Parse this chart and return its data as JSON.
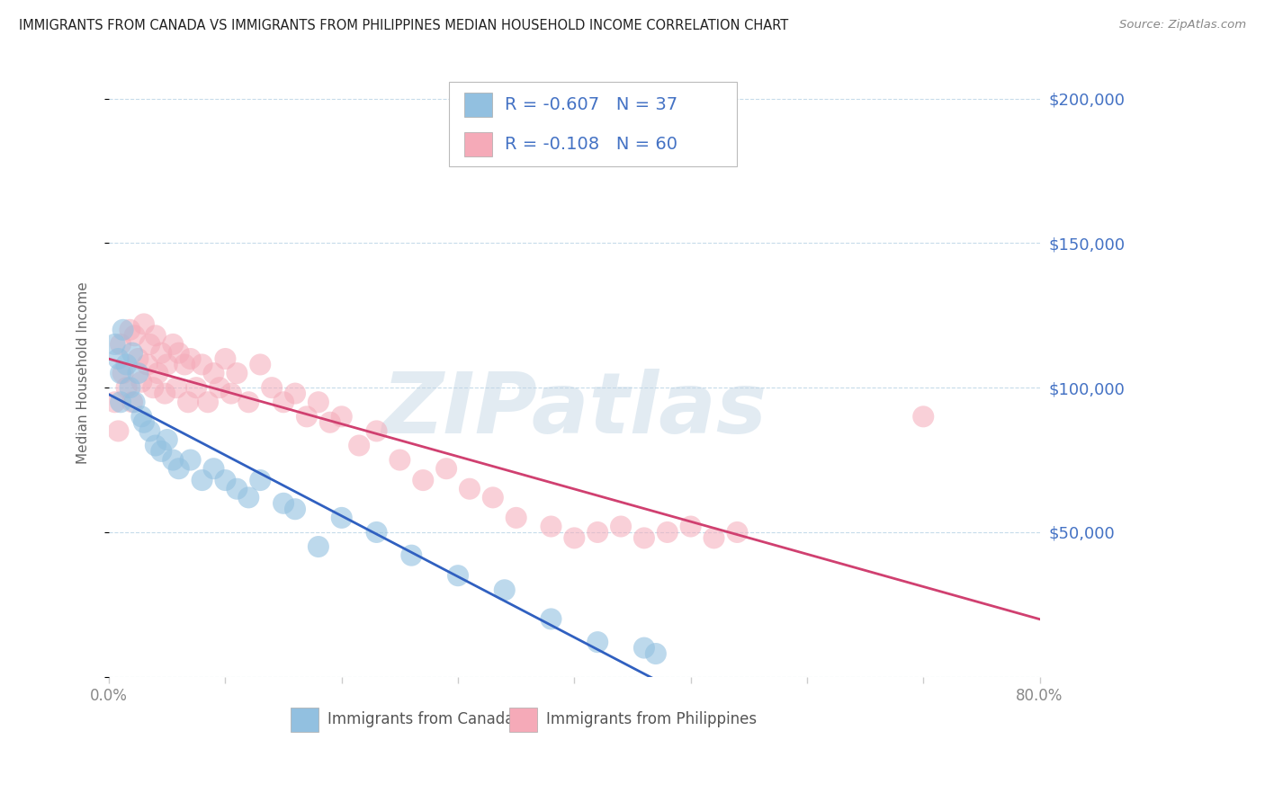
{
  "title": "IMMIGRANTS FROM CANADA VS IMMIGRANTS FROM PHILIPPINES MEDIAN HOUSEHOLD INCOME CORRELATION CHART",
  "source": "Source: ZipAtlas.com",
  "ylabel": "Median Household Income",
  "xlim": [
    0.0,
    0.8
  ],
  "ylim": [
    0,
    210000
  ],
  "yticks": [
    0,
    50000,
    100000,
    150000,
    200000
  ],
  "xticks": [
    0.0,
    0.1,
    0.2,
    0.3,
    0.4,
    0.5,
    0.6,
    0.7,
    0.8
  ],
  "xtick_labels": [
    "0.0%",
    "",
    "",
    "",
    "",
    "",
    "",
    "",
    "80.0%"
  ],
  "blue_color": "#92c0e0",
  "pink_color": "#f5aab8",
  "blue_line_color": "#3060c0",
  "pink_line_color": "#d04070",
  "legend_text_color": "#4472c4",
  "right_axis_color": "#4472c4",
  "R_blue": -0.607,
  "N_blue": 37,
  "R_pink": -0.108,
  "N_pink": 60,
  "legend_label_blue": "Immigrants from Canada",
  "legend_label_pink": "Immigrants from Philippines",
  "watermark": "ZIPatlas",
  "blue_scatter_x": [
    0.005,
    0.008,
    0.01,
    0.01,
    0.012,
    0.015,
    0.018,
    0.02,
    0.022,
    0.025,
    0.028,
    0.03,
    0.035,
    0.04,
    0.045,
    0.05,
    0.055,
    0.06,
    0.07,
    0.08,
    0.09,
    0.1,
    0.11,
    0.12,
    0.13,
    0.15,
    0.16,
    0.18,
    0.2,
    0.23,
    0.26,
    0.3,
    0.34,
    0.38,
    0.42,
    0.46,
    0.47
  ],
  "blue_scatter_y": [
    115000,
    110000,
    105000,
    95000,
    120000,
    108000,
    100000,
    112000,
    95000,
    105000,
    90000,
    88000,
    85000,
    80000,
    78000,
    82000,
    75000,
    72000,
    75000,
    68000,
    72000,
    68000,
    65000,
    62000,
    68000,
    60000,
    58000,
    45000,
    55000,
    50000,
    42000,
    35000,
    30000,
    20000,
    12000,
    10000,
    8000
  ],
  "pink_scatter_x": [
    0.005,
    0.008,
    0.01,
    0.012,
    0.015,
    0.018,
    0.02,
    0.022,
    0.025,
    0.028,
    0.03,
    0.033,
    0.035,
    0.038,
    0.04,
    0.042,
    0.045,
    0.048,
    0.05,
    0.055,
    0.058,
    0.06,
    0.065,
    0.068,
    0.07,
    0.075,
    0.08,
    0.085,
    0.09,
    0.095,
    0.1,
    0.105,
    0.11,
    0.12,
    0.13,
    0.14,
    0.15,
    0.16,
    0.17,
    0.18,
    0.19,
    0.2,
    0.215,
    0.23,
    0.25,
    0.27,
    0.29,
    0.31,
    0.33,
    0.35,
    0.38,
    0.4,
    0.42,
    0.44,
    0.46,
    0.48,
    0.5,
    0.52,
    0.54,
    0.7
  ],
  "pink_scatter_y": [
    95000,
    85000,
    115000,
    105000,
    100000,
    120000,
    95000,
    118000,
    110000,
    102000,
    122000,
    108000,
    115000,
    100000,
    118000,
    105000,
    112000,
    98000,
    108000,
    115000,
    100000,
    112000,
    108000,
    95000,
    110000,
    100000,
    108000,
    95000,
    105000,
    100000,
    110000,
    98000,
    105000,
    95000,
    108000,
    100000,
    95000,
    98000,
    90000,
    95000,
    88000,
    90000,
    80000,
    85000,
    75000,
    68000,
    72000,
    65000,
    62000,
    55000,
    52000,
    48000,
    50000,
    52000,
    48000,
    50000,
    52000,
    48000,
    50000,
    90000
  ]
}
